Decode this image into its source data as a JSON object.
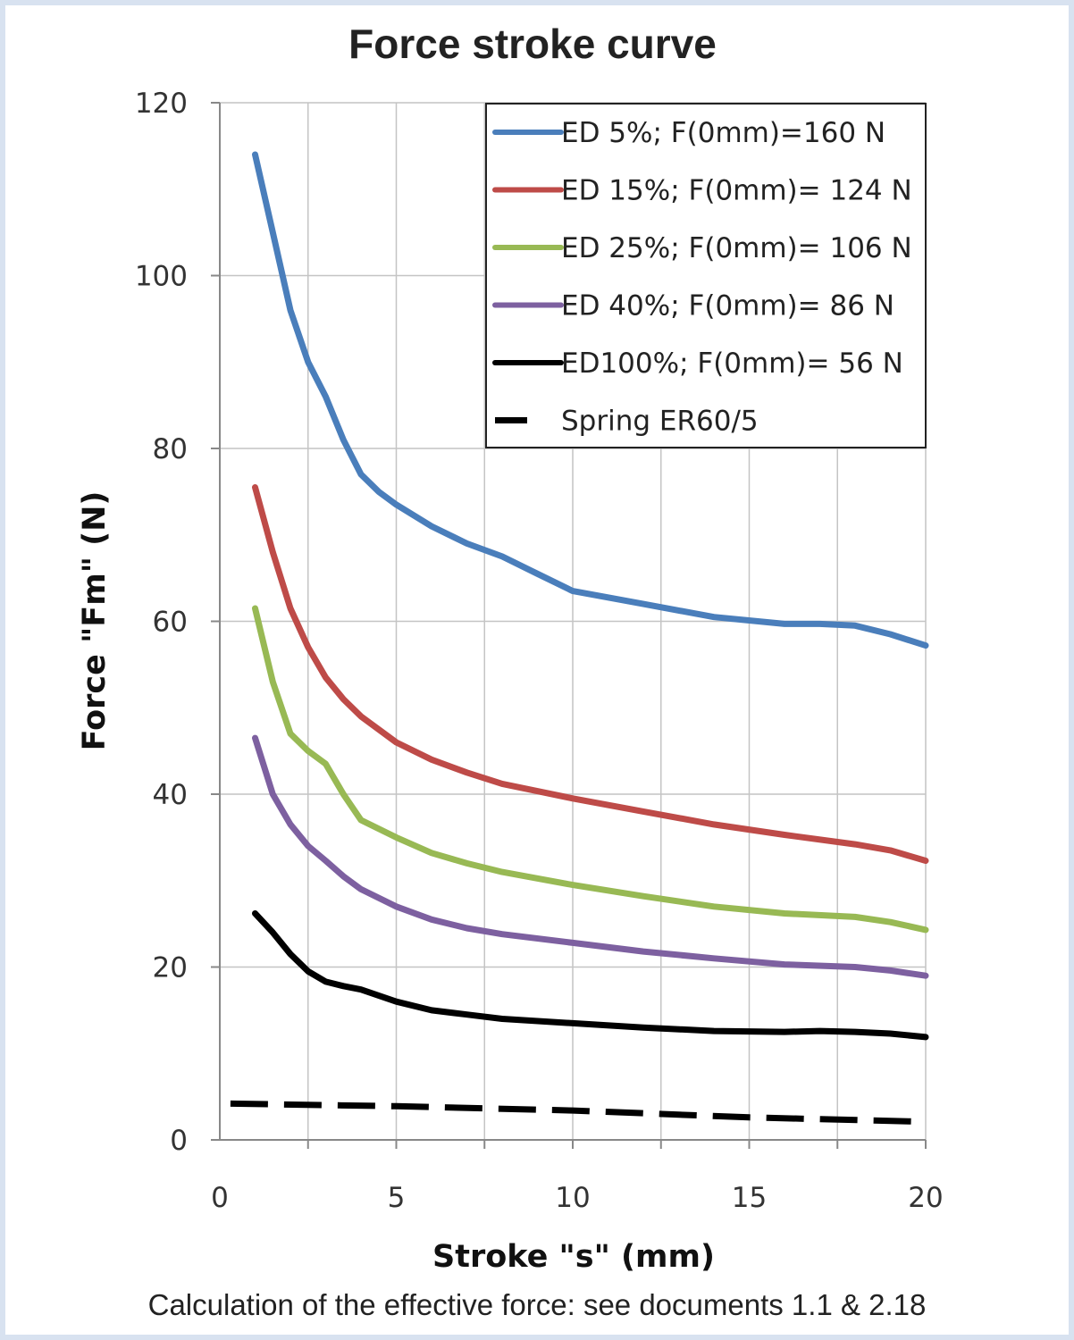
{
  "chart_data": {
    "type": "line",
    "title": "Force stroke curve",
    "xlabel": "Stroke \"s\" (mm)",
    "ylabel": "Force \"Fm\" (N)",
    "xlim": [
      0,
      20
    ],
    "ylim": [
      0,
      120
    ],
    "x_ticks": [
      "0",
      "5",
      "10",
      "15",
      "20"
    ],
    "y_ticks": [
      "0",
      "20",
      "40",
      "60",
      "80",
      "100",
      "120"
    ],
    "grid": true,
    "legend_position": "top-right",
    "series": [
      {
        "name": "ED 5%; F(0mm)=160 N",
        "color": "#4a7ebb",
        "style": "solid",
        "points": [
          [
            1,
            114
          ],
          [
            1.5,
            105
          ],
          [
            2,
            96
          ],
          [
            2.5,
            90
          ],
          [
            3,
            86
          ],
          [
            3.5,
            81
          ],
          [
            4,
            77
          ],
          [
            4.5,
            75
          ],
          [
            5,
            73.5
          ],
          [
            6,
            71
          ],
          [
            7,
            69
          ],
          [
            8,
            67.5
          ],
          [
            9,
            65.5
          ],
          [
            10,
            63.5
          ],
          [
            12,
            62
          ],
          [
            14,
            60.5
          ],
          [
            16,
            59.7
          ],
          [
            17,
            59.7
          ],
          [
            18,
            59.5
          ],
          [
            19,
            58.5
          ],
          [
            20,
            57.2
          ]
        ]
      },
      {
        "name": "ED 15%; F(0mm)= 124 N",
        "color": "#be4b48",
        "style": "solid",
        "points": [
          [
            1,
            75.5
          ],
          [
            1.5,
            68
          ],
          [
            2,
            61.5
          ],
          [
            2.5,
            57
          ],
          [
            3,
            53.5
          ],
          [
            3.5,
            51
          ],
          [
            4,
            49
          ],
          [
            5,
            46
          ],
          [
            6,
            44
          ],
          [
            7,
            42.5
          ],
          [
            8,
            41.2
          ],
          [
            10,
            39.5
          ],
          [
            12,
            38
          ],
          [
            14,
            36.5
          ],
          [
            16,
            35.3
          ],
          [
            18,
            34.2
          ],
          [
            19,
            33.5
          ],
          [
            20,
            32.3
          ]
        ]
      },
      {
        "name": "ED 25%; F(0mm)= 106 N",
        "color": "#98b954",
        "style": "solid",
        "points": [
          [
            1,
            61.5
          ],
          [
            1.5,
            53
          ],
          [
            2,
            47
          ],
          [
            2.5,
            45
          ],
          [
            3,
            43.5
          ],
          [
            3.5,
            40
          ],
          [
            4,
            37
          ],
          [
            5,
            35
          ],
          [
            6,
            33.2
          ],
          [
            7,
            32
          ],
          [
            8,
            31
          ],
          [
            10,
            29.5
          ],
          [
            12,
            28.2
          ],
          [
            14,
            27
          ],
          [
            16,
            26.2
          ],
          [
            18,
            25.8
          ],
          [
            19,
            25.2
          ],
          [
            20,
            24.3
          ]
        ]
      },
      {
        "name": "ED 40%; F(0mm)= 86 N",
        "color": "#7d60a0",
        "style": "solid",
        "points": [
          [
            1,
            46.5
          ],
          [
            1.5,
            40
          ],
          [
            2,
            36.5
          ],
          [
            2.5,
            34
          ],
          [
            3,
            32.3
          ],
          [
            3.5,
            30.5
          ],
          [
            4,
            29
          ],
          [
            5,
            27
          ],
          [
            6,
            25.5
          ],
          [
            7,
            24.5
          ],
          [
            8,
            23.8
          ],
          [
            10,
            22.8
          ],
          [
            12,
            21.8
          ],
          [
            14,
            21
          ],
          [
            16,
            20.3
          ],
          [
            18,
            20
          ],
          [
            19,
            19.6
          ],
          [
            20,
            19
          ]
        ]
      },
      {
        "name": "ED100%; F(0mm)= 56 N",
        "color": "#000000",
        "style": "solid",
        "points": [
          [
            1,
            26.2
          ],
          [
            1.5,
            24
          ],
          [
            2,
            21.5
          ],
          [
            2.5,
            19.5
          ],
          [
            3,
            18.3
          ],
          [
            3.5,
            17.8
          ],
          [
            4,
            17.4
          ],
          [
            5,
            16
          ],
          [
            6,
            15
          ],
          [
            7,
            14.5
          ],
          [
            8,
            14
          ],
          [
            10,
            13.5
          ],
          [
            12,
            13
          ],
          [
            14,
            12.6
          ],
          [
            16,
            12.5
          ],
          [
            17,
            12.6
          ],
          [
            18,
            12.5
          ],
          [
            19,
            12.3
          ],
          [
            20,
            11.9
          ]
        ]
      },
      {
        "name": "Spring ER60/5",
        "color": "#000000",
        "style": "dashed",
        "points": [
          [
            0.3,
            4.2
          ],
          [
            5,
            3.9
          ],
          [
            10,
            3.4
          ],
          [
            15,
            2.6
          ],
          [
            20,
            2.1
          ]
        ]
      }
    ]
  },
  "caption": "Calculation of the effective force: see documents 1.1 & 2.18"
}
